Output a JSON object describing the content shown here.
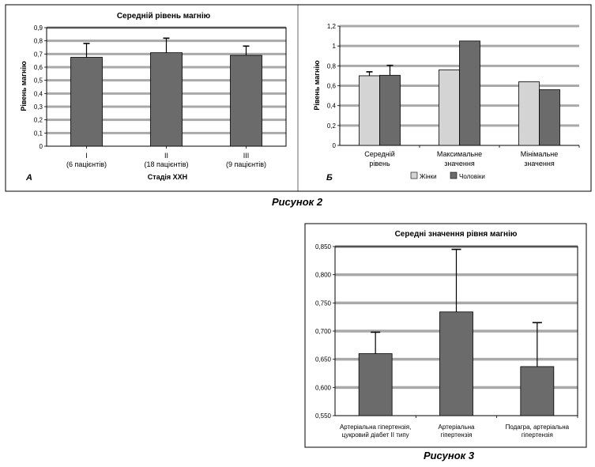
{
  "figure2_caption": "Рисунок 2",
  "figure3_caption": "Рисунок 3",
  "colors": {
    "bar_dark": "#6b6b6b",
    "bar_light": "#d4d4d4",
    "grid": "#a9a9a9",
    "axis": "#000000"
  },
  "chart_data": [
    {
      "id": "a",
      "type": "bar",
      "panel_letter": "А",
      "title": "Середній рівень магнію",
      "xlabel": "Стадія ХХН",
      "ylabel": "Рівень магнію",
      "categories": [
        [
          "I",
          "(6 пацієнтів)"
        ],
        [
          "II",
          "(18 пацієнтів)"
        ],
        [
          "III",
          "(9 пацієнтів)"
        ]
      ],
      "values": [
        0.675,
        0.71,
        0.69
      ],
      "errors": [
        0.105,
        0.11,
        0.07
      ],
      "ylim": [
        0,
        0.9
      ],
      "yticks": [
        "0",
        "0,1",
        "0,2",
        "0,3",
        "0,4",
        "0,5",
        "0,6",
        "0,7",
        "0,8",
        "0,9"
      ],
      "grid": true
    },
    {
      "id": "b",
      "type": "bar",
      "panel_letter": "Б",
      "title": "",
      "xlabel": "",
      "ylabel": "Рівень магнію",
      "categories": [
        [
          "Середній",
          "рівень"
        ],
        [
          "Максимальне",
          "значення"
        ],
        [
          "Мінімальне",
          "значення"
        ]
      ],
      "series": [
        {
          "name": "Жінки",
          "values": [
            0.7,
            0.76,
            0.64
          ],
          "errors": [
            0.04,
            null,
            null
          ]
        },
        {
          "name": "Чоловіки",
          "values": [
            0.705,
            1.05,
            0.56
          ],
          "errors": [
            0.1,
            null,
            null
          ]
        }
      ],
      "ylim": [
        0,
        1.2
      ],
      "yticks": [
        "0",
        "0,2",
        "0,4",
        "0,6",
        "0,8",
        "1",
        "1,2"
      ],
      "legend_position": "bottom",
      "grid": true
    },
    {
      "id": "c",
      "type": "bar",
      "title": "Середні значення рівня магнію",
      "xlabel": "",
      "ylabel": "",
      "categories": [
        [
          "Артеріальна гіпертензія,",
          "цукровий діабет ІІ типу"
        ],
        [
          "Артеріальна",
          "гіпертензія"
        ],
        [
          "Подагра, артеріальна",
          "гіпертензія"
        ]
      ],
      "values": [
        0.66,
        0.734,
        0.637
      ],
      "errors": [
        0.038,
        0.111,
        0.078
      ],
      "ylim": [
        0.55,
        0.85
      ],
      "yticks": [
        "0,550",
        "0,600",
        "0,650",
        "0,700",
        "0,750",
        "0,800",
        "0,850"
      ],
      "grid": true
    }
  ]
}
